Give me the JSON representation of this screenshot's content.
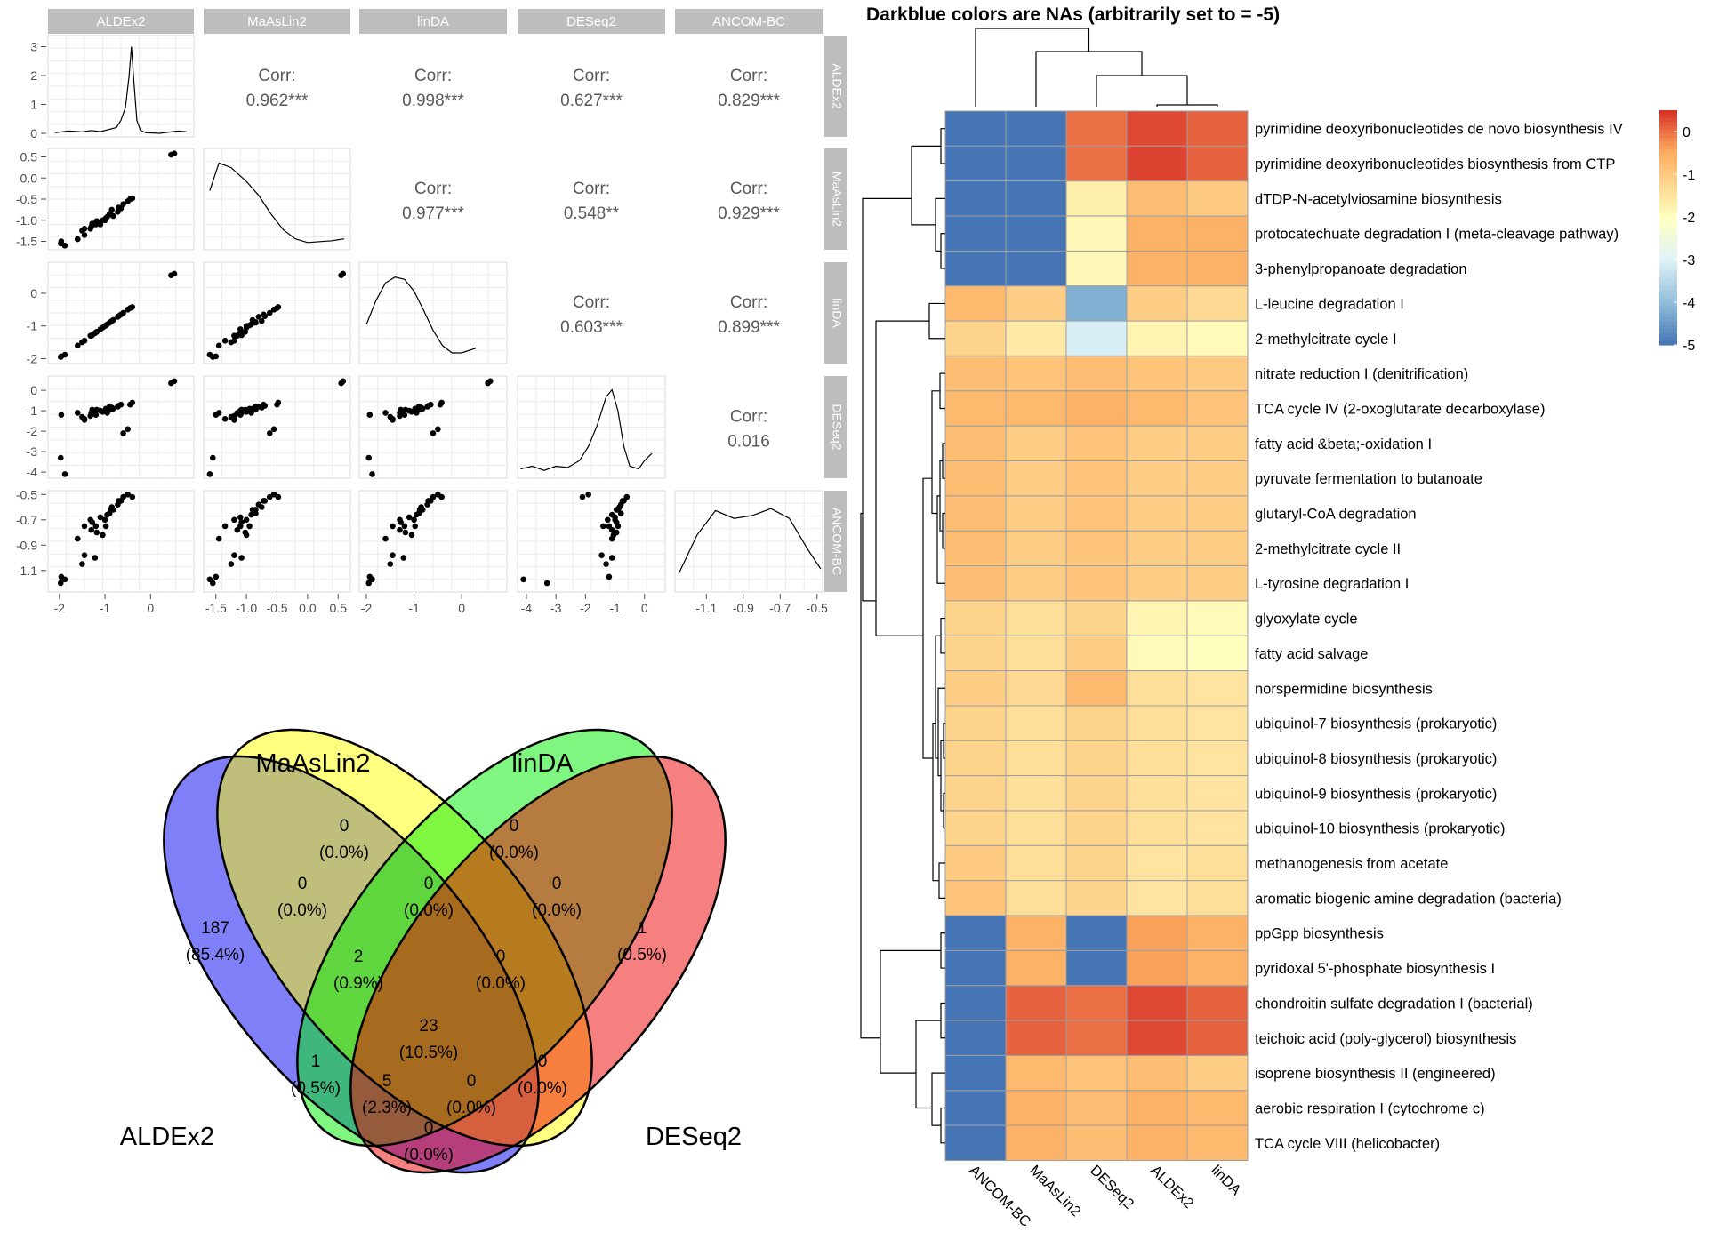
{
  "chart_data": [
    {
      "type": "scatter",
      "title": "",
      "methods": [
        "ALDEx2",
        "MaAsLin2",
        "linDA",
        "DESeq2",
        "ANCOM-BC"
      ],
      "correlations": [
        {
          "pair": [
            "ALDEx2",
            "MaAsLin2"
          ],
          "label": "Corr:",
          "value": "0.962***"
        },
        {
          "pair": [
            "ALDEx2",
            "linDA"
          ],
          "label": "Corr:",
          "value": "0.998***"
        },
        {
          "pair": [
            "ALDEx2",
            "DESeq2"
          ],
          "label": "Corr:",
          "value": "0.627***"
        },
        {
          "pair": [
            "ALDEx2",
            "ANCOM-BC"
          ],
          "label": "Corr:",
          "value": "0.829***"
        },
        {
          "pair": [
            "MaAsLin2",
            "linDA"
          ],
          "label": "Corr:",
          "value": "0.977***"
        },
        {
          "pair": [
            "MaAsLin2",
            "DESeq2"
          ],
          "label": "Corr:",
          "value": "0.548**"
        },
        {
          "pair": [
            "MaAsLin2",
            "ANCOM-BC"
          ],
          "label": "Corr:",
          "value": "0.929***"
        },
        {
          "pair": [
            "linDA",
            "DESeq2"
          ],
          "label": "Corr:",
          "value": "0.603***"
        },
        {
          "pair": [
            "linDA",
            "ANCOM-BC"
          ],
          "label": "Corr:",
          "value": "0.899***"
        },
        {
          "pair": [
            "DESeq2",
            "ANCOM-BC"
          ],
          "label": "Corr:",
          "value": "0.016"
        }
      ],
      "row_axis_ticks": {
        "ALDEx2": [
          "3",
          "2",
          "1",
          "0"
        ],
        "MaAsLin2": [
          "0.5",
          "0.0",
          "-0.5",
          "-1.0",
          "-1.5"
        ],
        "linDA": [
          "0",
          "-1",
          "-2"
        ],
        "DESeq2": [
          "0",
          "-1",
          "-2",
          "-3",
          "-4"
        ],
        "ANCOM-BC": [
          "-0.5",
          "-0.7",
          "-0.9",
          "-1.1"
        ]
      },
      "col_axis_ticks": {
        "ALDEx2": [
          "-2",
          "-1",
          "0"
        ],
        "MaAsLin2": [
          "-1.5",
          "-1.0",
          "-0.5",
          "0.0",
          "0.5"
        ],
        "linDA": [
          "-2",
          "-1",
          "0"
        ],
        "DESeq2": [
          "-4",
          "-3",
          "-2",
          "-1",
          "0"
        ],
        "ANCOM-BC": [
          "-1.1",
          "-0.9",
          "-0.7",
          "-0.5"
        ]
      },
      "points": {
        "ALDEx2": [
          0.45,
          0.52,
          -1.97,
          -1.96,
          -1.6,
          -1.45,
          -1.32,
          -1.1,
          -1.05,
          -1.18,
          -1.22,
          -0.98,
          -0.9,
          -0.85,
          -0.7,
          -0.6,
          -0.5,
          -0.45,
          -1.5,
          -1.45,
          -1.3,
          -1.28,
          -0.82,
          -0.72,
          -0.65,
          -1.88,
          -0.4,
          -1.0,
          -0.95,
          -0.88,
          -1.2
        ],
        "MaAsLin2": [
          0.55,
          0.58,
          -1.55,
          -1.5,
          -1.45,
          -1.35,
          -1.2,
          -1.1,
          -1.0,
          -1.02,
          -1.08,
          -0.95,
          -0.85,
          -0.75,
          -0.7,
          -0.62,
          -0.55,
          -0.5,
          -1.25,
          -1.2,
          -1.15,
          -1.08,
          -0.9,
          -0.8,
          -0.72,
          -1.6,
          -0.48,
          -1.0,
          -0.92,
          -0.85,
          -1.1
        ],
        "linDA": [
          0.55,
          0.6,
          -1.95,
          -1.93,
          -1.6,
          -1.45,
          -1.3,
          -1.1,
          -1.05,
          -1.18,
          -1.22,
          -0.98,
          -0.9,
          -0.85,
          -0.7,
          -0.6,
          -0.5,
          -0.45,
          -1.5,
          -1.45,
          -1.3,
          -1.28,
          -0.82,
          -0.72,
          -0.65,
          -1.88,
          -0.42,
          -1.0,
          -0.95,
          -0.88,
          -1.2
        ],
        "DESeq2": [
          0.35,
          0.45,
          -3.3,
          -1.2,
          -1.1,
          -1.4,
          -1.25,
          -1.0,
          -1.05,
          -0.95,
          -1.1,
          -0.9,
          -0.8,
          -0.85,
          -0.75,
          -2.1,
          -1.9,
          -0.7,
          -1.3,
          -1.45,
          -1.1,
          -0.95,
          -0.9,
          -0.8,
          -0.7,
          -4.1,
          -0.6,
          -1.0,
          -1.1,
          -0.95,
          -1.2
        ],
        "ANCOM-BC": [
          null,
          null,
          -1.2,
          -1.15,
          -0.85,
          -0.75,
          -0.7,
          -0.68,
          -0.82,
          -0.8,
          -1.0,
          -0.75,
          -0.65,
          -0.6,
          -0.55,
          -0.52,
          -0.5,
          null,
          -1.05,
          -0.98,
          -0.78,
          -0.72,
          -0.62,
          -0.58,
          -0.55,
          -1.17,
          -0.52,
          -0.7,
          -0.66,
          -0.62,
          -0.75
        ]
      },
      "density_curves": {
        "ALDEx2": [
          [
            -2.1,
            0.02
          ],
          [
            -1.8,
            0.08
          ],
          [
            -1.5,
            0.05
          ],
          [
            -1.3,
            0.1
          ],
          [
            -1.1,
            0.06
          ],
          [
            -0.9,
            0.14
          ],
          [
            -0.75,
            0.2
          ],
          [
            -0.65,
            0.45
          ],
          [
            -0.55,
            0.9
          ],
          [
            -0.47,
            2.0
          ],
          [
            -0.42,
            3.0
          ],
          [
            -0.37,
            1.9
          ],
          [
            -0.3,
            0.45
          ],
          [
            -0.22,
            0.1
          ],
          [
            -0.1,
            0.02
          ],
          [
            0.2,
            0.0
          ],
          [
            0.6,
            0.08
          ],
          [
            0.8,
            0.05
          ]
        ],
        "MaAsLin2": [
          [
            -1.6,
            0.6
          ],
          [
            -1.45,
            0.9
          ],
          [
            -1.25,
            0.85
          ],
          [
            -1.0,
            0.7
          ],
          [
            -0.8,
            0.55
          ],
          [
            -0.6,
            0.35
          ],
          [
            -0.4,
            0.18
          ],
          [
            -0.2,
            0.08
          ],
          [
            0.0,
            0.04
          ],
          [
            0.2,
            0.05
          ],
          [
            0.4,
            0.06
          ],
          [
            0.6,
            0.08
          ]
        ],
        "linDA": [
          [
            -2.0,
            0.3
          ],
          [
            -1.8,
            0.5
          ],
          [
            -1.6,
            0.65
          ],
          [
            -1.4,
            0.7
          ],
          [
            -1.2,
            0.68
          ],
          [
            -1.0,
            0.58
          ],
          [
            -0.8,
            0.42
          ],
          [
            -0.6,
            0.25
          ],
          [
            -0.4,
            0.12
          ],
          [
            -0.2,
            0.06
          ],
          [
            0.0,
            0.06
          ],
          [
            0.3,
            0.1
          ]
        ],
        "DESeq2": [
          [
            -4.2,
            0.04
          ],
          [
            -3.8,
            0.06
          ],
          [
            -3.4,
            0.03
          ],
          [
            -3.0,
            0.06
          ],
          [
            -2.6,
            0.05
          ],
          [
            -2.2,
            0.1
          ],
          [
            -1.9,
            0.2
          ],
          [
            -1.6,
            0.35
          ],
          [
            -1.3,
            0.55
          ],
          [
            -1.1,
            0.6
          ],
          [
            -0.9,
            0.45
          ],
          [
            -0.7,
            0.2
          ],
          [
            -0.5,
            0.06
          ],
          [
            -0.2,
            0.04
          ],
          [
            0.0,
            0.1
          ],
          [
            0.25,
            0.15
          ]
        ],
        "ANCOM-BC": [
          [
            -1.25,
            0.15
          ],
          [
            -1.15,
            0.55
          ],
          [
            -1.05,
            0.8
          ],
          [
            -0.95,
            0.72
          ],
          [
            -0.85,
            0.75
          ],
          [
            -0.75,
            0.82
          ],
          [
            -0.65,
            0.72
          ],
          [
            -0.55,
            0.4
          ],
          [
            -0.48,
            0.2
          ]
        ]
      }
    },
    {
      "type": "venn",
      "sets": [
        "MaAsLin2",
        "linDA",
        "ALDEx2",
        "DESeq2"
      ],
      "regions": [
        {
          "sets": [
            "MaAsLin2"
          ],
          "count": "0",
          "pct": "(0.0%)"
        },
        {
          "sets": [
            "linDA"
          ],
          "count": "0",
          "pct": "(0.0%)"
        },
        {
          "sets": [
            "ALDEx2",
            "MaAsLin2"
          ],
          "count": "0",
          "pct": "(0.0%)"
        },
        {
          "sets": [
            "MaAsLin2",
            "linDA"
          ],
          "count": "0",
          "pct": "(0.0%)"
        },
        {
          "sets": [
            "linDA",
            "DESeq2"
          ],
          "count": "0",
          "pct": "(0.0%)"
        },
        {
          "sets": [
            "ALDEx2"
          ],
          "count": "187",
          "pct": "(85.4%)"
        },
        {
          "sets": [
            "ALDEx2",
            "MaAsLin2",
            "linDA"
          ],
          "count": "2",
          "pct": "(0.9%)"
        },
        {
          "sets": [
            "MaAsLin2",
            "linDA",
            "DESeq2"
          ],
          "count": "0",
          "pct": "(0.0%)"
        },
        {
          "sets": [
            "DESeq2"
          ],
          "count": "1",
          "pct": "(0.5%)"
        },
        {
          "sets": [
            "ALDEx2",
            "MaAsLin2",
            "linDA",
            "DESeq2"
          ],
          "count": "23",
          "pct": "(10.5%)"
        },
        {
          "sets": [
            "ALDEx2",
            "linDA"
          ],
          "count": "1",
          "pct": "(0.5%)"
        },
        {
          "sets": [
            "MaAsLin2",
            "DESeq2"
          ],
          "count": "0",
          "pct": "(0.0%)"
        },
        {
          "sets": [
            "ALDEx2",
            "linDA",
            "DESeq2"
          ],
          "count": "5",
          "pct": "(2.3%)"
        },
        {
          "sets": [
            "ALDEx2",
            "MaAsLin2",
            "DESeq2"
          ],
          "count": "0",
          "pct": "(0.0%)"
        },
        {
          "sets": [
            "ALDEx2",
            "DESeq2"
          ],
          "count": "0",
          "pct": "(0.0%)"
        }
      ],
      "colors": {
        "ALDEx2": "#0000f0",
        "MaAsLin2": "#ffff00",
        "linDA": "#00ee00",
        "DESeq2": "#ee0000"
      }
    },
    {
      "type": "heatmap",
      "title": "Darkblue colors are NAs (arbitrarily set to = -5)",
      "columns": [
        "ANCOM-BC",
        "MaAsLin2",
        "DESeq2",
        "ALDEx2",
        "linDA"
      ],
      "rows": [
        "pyrimidine deoxyribonucleotides de novo biosynthesis IV",
        "pyrimidine deoxyribonucleotides biosynthesis from CTP",
        "dTDP-N-acetylviosamine biosynthesis",
        "protocatechuate degradation I (meta-cleavage pathway)",
        "3-phenylpropanoate degradation",
        "L-leucine degradation I",
        "2-methylcitrate cycle I",
        "nitrate reduction I (denitrification)",
        "TCA cycle IV (2-oxoglutarate decarboxylase)",
        "fatty acid &beta;-oxidation I",
        "pyruvate fermentation to butanoate",
        "glutaryl-CoA degradation",
        "2-methylcitrate cycle II",
        "L-tyrosine degradation I",
        "glyoxylate cycle",
        "fatty acid salvage",
        "norspermidine biosynthesis",
        "ubiquinol-7 biosynthesis (prokaryotic)",
        "ubiquinol-8 biosynthesis (prokaryotic)",
        "ubiquinol-9 biosynthesis (prokaryotic)",
        "ubiquinol-10 biosynthesis (prokaryotic)",
        "methanogenesis from acetate",
        "aromatic biogenic amine degradation (bacteria)",
        "ppGpp biosynthesis",
        "pyridoxal 5'-phosphate biosynthesis I",
        "chondroitin sulfate degradation I (bacterial)",
        "teichoic acid (poly-glycerol) biosynthesis",
        "isoprene biosynthesis II (engineered)",
        "aerobic respiration I (cytochrome c)",
        "TCA cycle VIII (helicobacter)"
      ],
      "values": [
        [
          -5,
          -5,
          0.0,
          0.3,
          0.1
        ],
        [
          -5,
          -5,
          0.0,
          0.35,
          0.1
        ],
        [
          -5,
          -5,
          -1.7,
          -0.8,
          -1.0
        ],
        [
          -5,
          -5,
          -1.85,
          -0.6,
          -0.6
        ],
        [
          -5,
          -5,
          -1.85,
          -0.6,
          -0.6
        ],
        [
          -0.7,
          -1.1,
          -4.2,
          -1.1,
          -1.3
        ],
        [
          -1.2,
          -1.6,
          -3.1,
          -1.8,
          -1.9
        ],
        [
          -0.8,
          -0.9,
          -0.8,
          -0.9,
          -1.0
        ],
        [
          -0.7,
          -0.7,
          -0.6,
          -0.7,
          -0.9
        ],
        [
          -0.8,
          -1.1,
          -0.9,
          -1.1,
          -1.1
        ],
        [
          -0.8,
          -1.1,
          -0.9,
          -1.1,
          -1.1
        ],
        [
          -0.8,
          -1.1,
          -0.9,
          -1.1,
          -1.1
        ],
        [
          -0.8,
          -1.1,
          -0.9,
          -1.1,
          -1.1
        ],
        [
          -0.8,
          -1.1,
          -0.9,
          -1.1,
          -1.1
        ],
        [
          -1.2,
          -1.4,
          -1.2,
          -1.8,
          -1.9
        ],
        [
          -1.2,
          -1.4,
          -1.1,
          -1.9,
          -2.0
        ],
        [
          -1.1,
          -1.3,
          -0.7,
          -1.4,
          -1.5
        ],
        [
          -1.2,
          -1.4,
          -1.2,
          -1.4,
          -1.5
        ],
        [
          -1.2,
          -1.4,
          -1.2,
          -1.4,
          -1.5
        ],
        [
          -1.2,
          -1.4,
          -1.2,
          -1.4,
          -1.5
        ],
        [
          -1.2,
          -1.4,
          -1.2,
          -1.4,
          -1.5
        ],
        [
          -1.0,
          -1.4,
          -1.2,
          -1.5,
          -1.4
        ],
        [
          -0.9,
          -1.4,
          -1.2,
          -1.5,
          -1.4
        ],
        [
          -5,
          -0.6,
          -5,
          -0.4,
          -0.6
        ],
        [
          -5,
          -0.6,
          -5,
          -0.4,
          -0.6
        ],
        [
          -5,
          0.1,
          0.0,
          0.3,
          0.1
        ],
        [
          -5,
          0.1,
          0.0,
          0.3,
          0.1
        ],
        [
          -5,
          -0.7,
          -0.9,
          -0.8,
          -1.1
        ],
        [
          -5,
          -0.6,
          -0.8,
          -0.6,
          -0.7
        ],
        [
          -5,
          -0.6,
          -0.8,
          -0.6,
          -0.7
        ]
      ],
      "colorbar": {
        "ticks": [
          "0",
          "-1",
          "-2",
          "-3",
          "-4",
          "-5"
        ],
        "range": [
          -5,
          0.5
        ]
      },
      "colors": {
        "low": "#4575b4",
        "mid": "#ffffbf",
        "high": "#d73027"
      }
    }
  ]
}
